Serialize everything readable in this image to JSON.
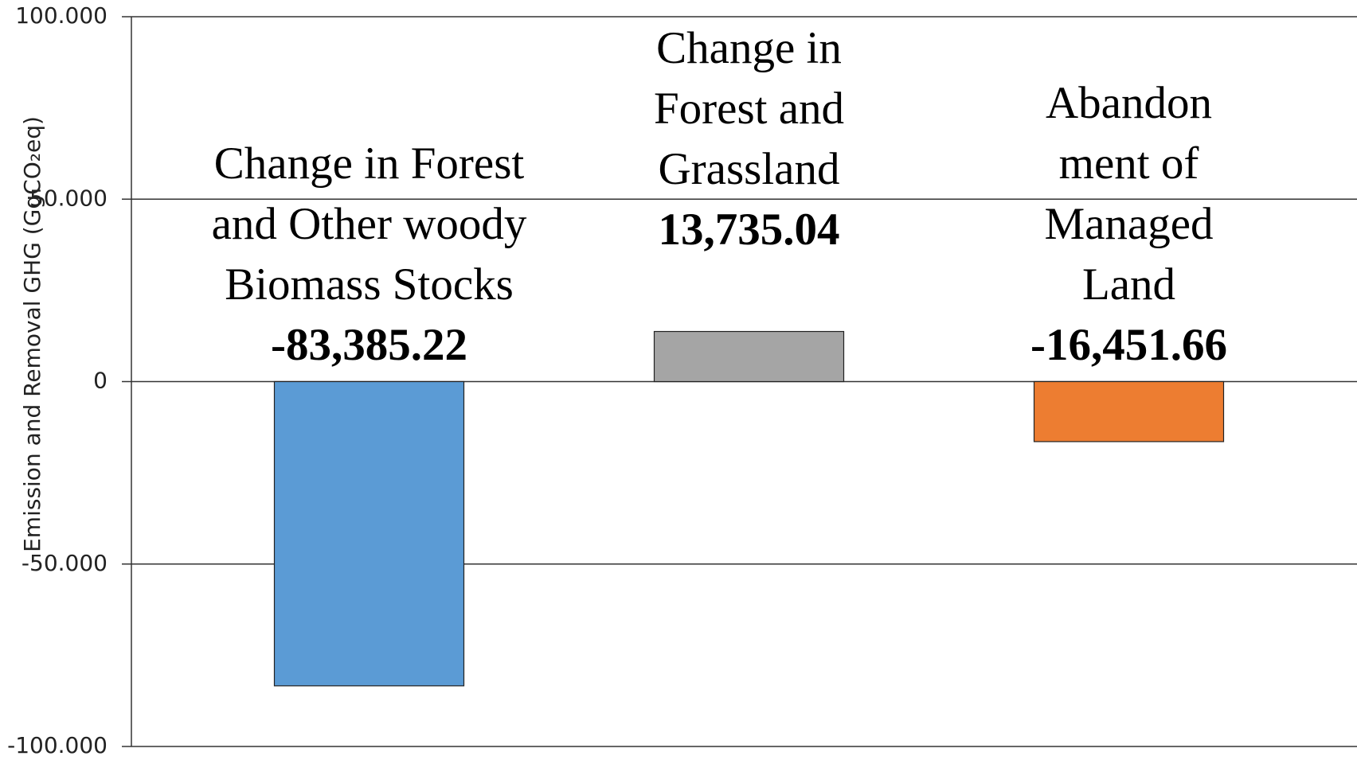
{
  "chart_data": {
    "type": "bar",
    "y_label": "Emission and Removal GHG (GgCO₂eq)",
    "categories": [
      "Change in Forest and Other woody Biomass Stocks",
      "Change in Forest and Grassland",
      "Abandonment of Managed Land"
    ],
    "values": [
      -83385.22,
      13735.04,
      -16451.66
    ],
    "value_labels": [
      "-83,385.22",
      "13,735.04",
      "-16,451.66"
    ],
    "colors": [
      "#5b9bd5",
      "#a5a5a5",
      "#ed7d31"
    ],
    "ylim": [
      -100000,
      100000
    ],
    "yticks": [
      {
        "value": -100000,
        "label": "-100.000"
      },
      {
        "value": -50000,
        "label": "-50.000"
      },
      0,
      {
        "value": 50000,
        "label": "50.000"
      },
      {
        "value": 100000,
        "label": "100.000"
      }
    ],
    "grid": true
  }
}
